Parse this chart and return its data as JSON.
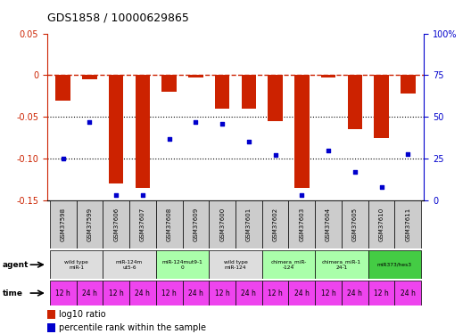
{
  "title": "GDS1858 / 10000629865",
  "samples": [
    "GSM37598",
    "GSM37599",
    "GSM37606",
    "GSM37607",
    "GSM37608",
    "GSM37609",
    "GSM37600",
    "GSM37601",
    "GSM37602",
    "GSM37603",
    "GSM37604",
    "GSM37605",
    "GSM37610",
    "GSM37611"
  ],
  "log10_ratio": [
    -0.03,
    -0.005,
    -0.13,
    -0.135,
    -0.02,
    -0.003,
    -0.04,
    -0.04,
    -0.055,
    -0.135,
    -0.003,
    -0.065,
    -0.075,
    -0.022
  ],
  "percentile_rank": [
    25,
    47,
    3,
    3,
    37,
    47,
    46,
    35,
    27,
    3,
    30,
    17,
    8,
    28
  ],
  "ylim_left": [
    -0.15,
    0.05
  ],
  "ylim_right": [
    0,
    100
  ],
  "yticks_left": [
    0.05,
    0.0,
    -0.05,
    -0.1,
    -0.15
  ],
  "yticks_right": [
    100,
    75,
    50,
    25,
    0
  ],
  "ytick_labels_left": [
    "0.05",
    "0",
    "-0.05",
    "-0.10",
    "-0.15"
  ],
  "ytick_labels_right": [
    "100%",
    "75",
    "50",
    "25",
    "0"
  ],
  "dotted_lines": [
    -0.05,
    -0.1
  ],
  "agent_groups": [
    {
      "label": "wild type\nmiR-1",
      "cols": [
        0,
        1
      ],
      "color": "#dddddd"
    },
    {
      "label": "miR-124m\nut5-6",
      "cols": [
        2,
        3
      ],
      "color": "#dddddd"
    },
    {
      "label": "miR-124mut9-1\n0",
      "cols": [
        4,
        5
      ],
      "color": "#aaffaa"
    },
    {
      "label": "wild type\nmiR-124",
      "cols": [
        6,
        7
      ],
      "color": "#dddddd"
    },
    {
      "label": "chimera_miR-\n-124",
      "cols": [
        8,
        9
      ],
      "color": "#aaffaa"
    },
    {
      "label": "chimera_miR-1\n24-1",
      "cols": [
        10,
        11
      ],
      "color": "#aaffaa"
    },
    {
      "label": "miR373/hes3",
      "cols": [
        12,
        13
      ],
      "color": "#44cc44"
    }
  ],
  "time_labels": [
    "12 h",
    "24 h",
    "12 h",
    "24 h",
    "12 h",
    "24 h",
    "12 h",
    "24 h",
    "12 h",
    "24 h",
    "12 h",
    "24 h",
    "12 h",
    "24 h"
  ],
  "time_color": "#ee44ee",
  "bar_color": "#cc2200",
  "dot_color": "#0000cc",
  "dashed_line_color": "#cc2200",
  "sample_bg_color": "#cccccc",
  "fig_width": 5.28,
  "fig_height": 3.75,
  "dpi": 100
}
